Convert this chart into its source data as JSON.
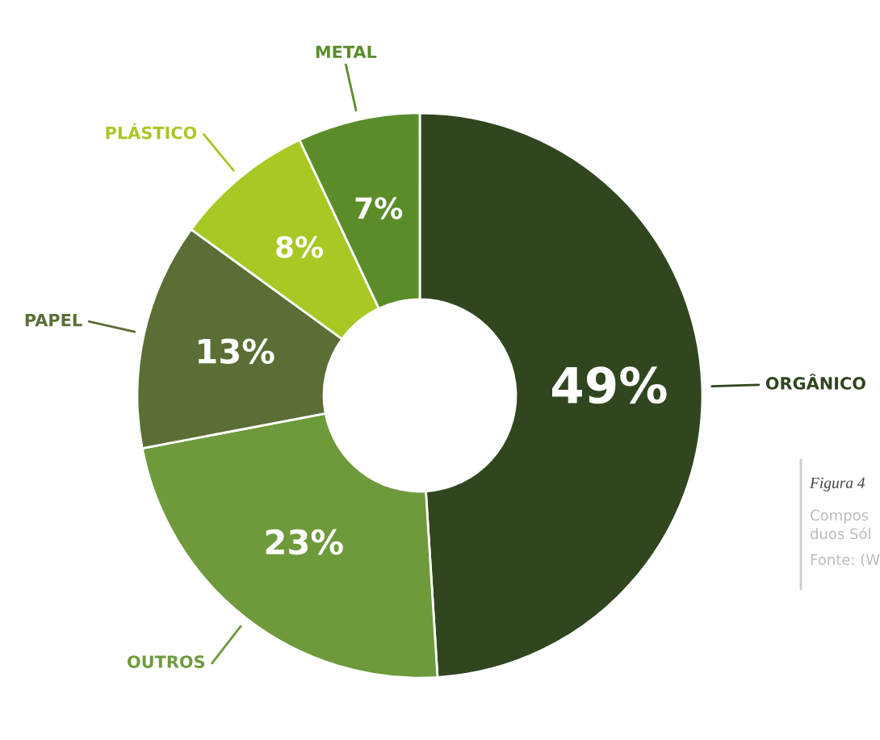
{
  "chart_data": {
    "type": "donut",
    "categories": [
      "ORGÂNICO",
      "OUTROS",
      "PAPEL",
      "PLÁSTICO",
      "METAL"
    ],
    "values": [
      49,
      23,
      13,
      8,
      7
    ],
    "colors": [
      "#30461f",
      "#6e9a3c",
      "#5b6e35",
      "#a8c824",
      "#5a8d2a"
    ],
    "value_labels": [
      "49%",
      "23%",
      "13%",
      "8%",
      "7%"
    ],
    "annotations": [
      "Figura 4",
      "Compos",
      "duos Sól",
      "Fonte: (W"
    ]
  }
}
